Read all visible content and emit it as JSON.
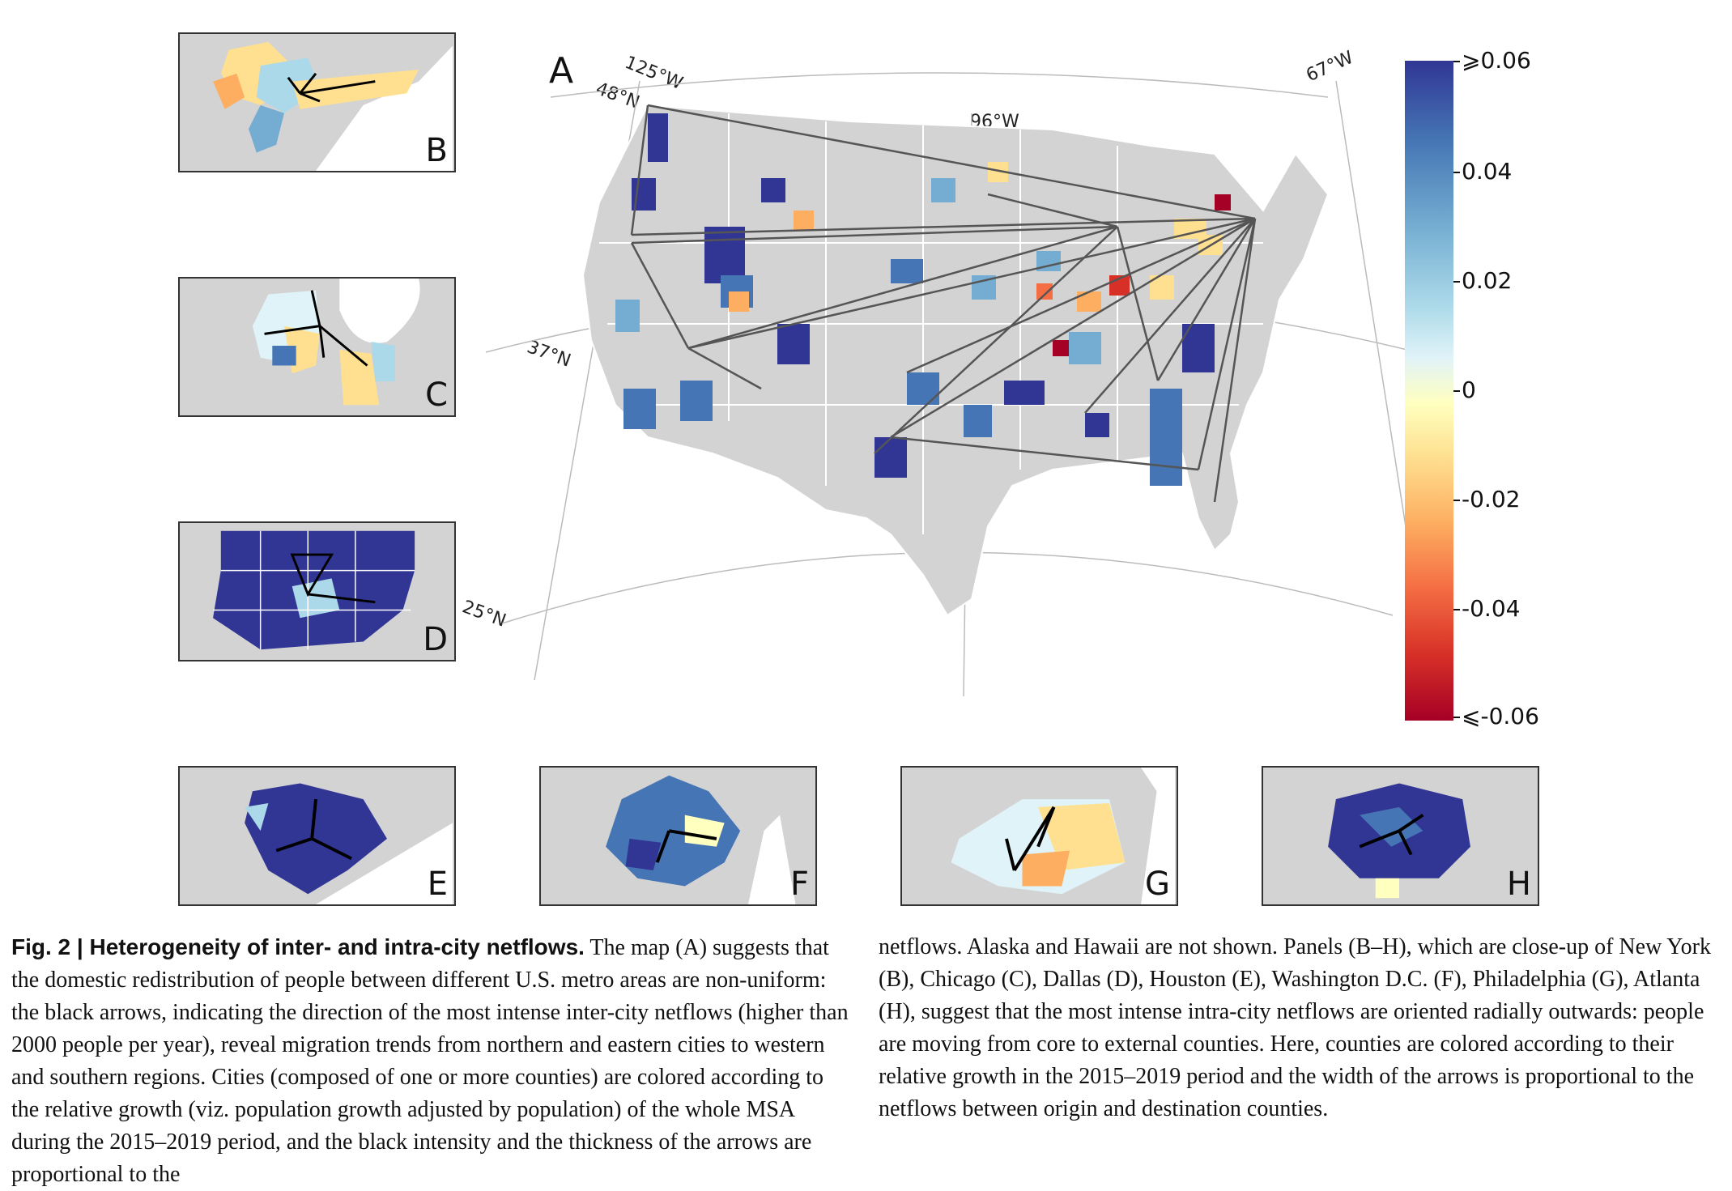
{
  "figure": {
    "panel_a_label": "A",
    "coords": {
      "lon_125": "125°W",
      "lon_96": "96°W",
      "lon_67": "67°W",
      "lat_48": "48°N",
      "lat_37": "37°N",
      "lat_25": "25°N"
    },
    "colorbar": {
      "ticks": [
        "⩾0.06",
        "0.04",
        "0.02",
        "0",
        "-0.02",
        "-0.04",
        "⩽-0.06"
      ],
      "colors": [
        "#313695",
        "#4575b4",
        "#74add1",
        "#abd9e9",
        "#ffffbf",
        "#fdae61",
        "#f46d43",
        "#d73027",
        "#a50026"
      ]
    },
    "insets": {
      "B": "B",
      "C": "C",
      "D": "D",
      "E": "E",
      "F": "F",
      "G": "G",
      "H": "H"
    }
  },
  "caption": {
    "fig_label": "Fig. 2 | Heterogeneity of inter- and intra-city netflows.",
    "left_text": "The map (A) suggests that the domestic redistribution of people between different U.S. metro areas are non-uniform: the black arrows, indicating the direction of the most intense inter-city netflows (higher than 2000 people per year), reveal migration trends from northern and eastern cities to western and southern regions. Cities (composed of one or more counties) are colored according to the relative growth (viz. population growth adjusted by population) of the whole MSA during the 2015–2019 period, and the black intensity and the thickness of the arrows are proportional to the",
    "right_text": "netflows. Alaska and Hawaii are not shown. Panels (B–H), which are close-up of New York (B), Chicago (C), Dallas (D), Houston (E), Washington D.C. (F), Philadelphia (G), Atlanta (H), suggest that the most intense intra-city netflows are oriented radially outwards: people are moving from core to external counties. Here, counties are colored according to their relative growth in the 2015–2019 period and the width of the arrows is proportional to the netflows between origin and destination counties."
  }
}
